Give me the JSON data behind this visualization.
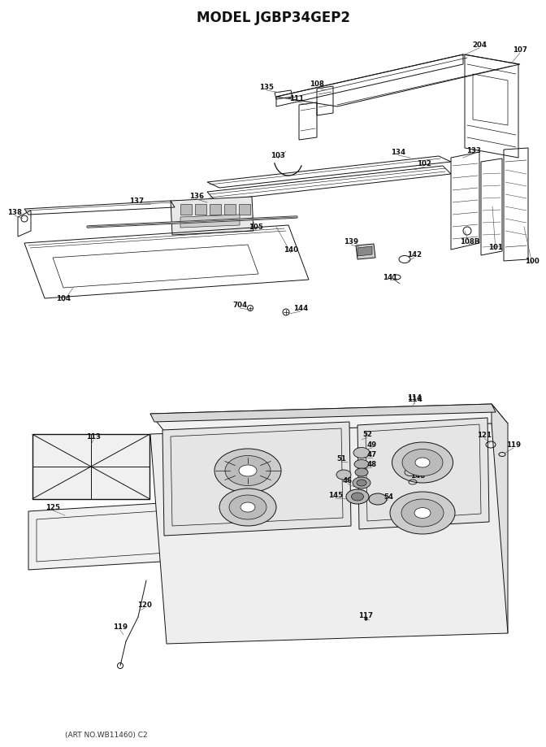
{
  "title": "MODEL JGBP34GEP2",
  "footer": "(ART NO.WB11460) C2",
  "bg_color": "#ffffff",
  "title_fontsize": 11,
  "footer_fontsize": 7,
  "line_color": "#111111",
  "label_fontsize": 6.5
}
